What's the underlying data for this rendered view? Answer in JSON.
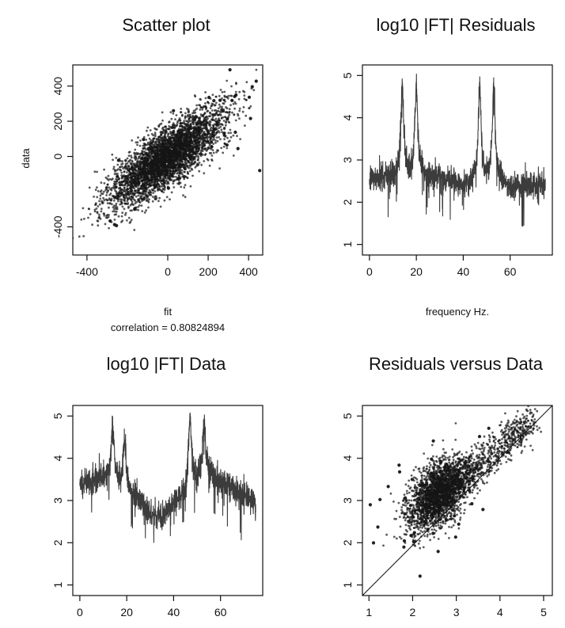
{
  "chart_data": [
    {
      "type": "scatter",
      "title": "Scatter plot",
      "xlabel": "fit",
      "ylabel": "data",
      "note_label": "correlation",
      "note_value": "0.80824894",
      "xlim": [
        -470,
        470
      ],
      "ylim": [
        -560,
        520
      ],
      "xticks": [
        -400,
        0,
        200,
        400
      ],
      "yticks": [
        -400,
        0,
        200,
        400
      ],
      "grid": false,
      "cloud": {
        "x_mean": 0,
        "x_sd": 140,
        "correlation": 0.80824894,
        "y_slope": 0.95,
        "n": 4000
      },
      "color": "#151515"
    },
    {
      "type": "line",
      "title": "log10 |FT| Residuals",
      "xlabel": "frequency Hz.",
      "ylabel": "",
      "xlim": [
        -3,
        78
      ],
      "ylim": [
        0.75,
        5.25
      ],
      "xticks": [
        0,
        20,
        40,
        60
      ],
      "yticks": [
        1,
        2,
        3,
        4,
        5
      ],
      "grid": false,
      "spectrum": {
        "x_range": [
          0,
          75
        ],
        "base": [
          [
            0,
            2.55
          ],
          [
            10,
            2.6
          ],
          [
            30,
            2.6
          ],
          [
            40,
            2.35
          ],
          [
            45,
            2.5
          ],
          [
            55,
            2.5
          ],
          [
            60,
            2.35
          ],
          [
            75,
            2.4
          ]
        ],
        "peaks": [
          {
            "x": 14,
            "y": 4.8
          },
          {
            "x": 20,
            "y": 4.7
          },
          {
            "x": 47,
            "y": 4.7
          },
          {
            "x": 53,
            "y": 4.7
          }
        ],
        "min_y": 1.15
      },
      "color": "#1a1a1a"
    },
    {
      "type": "line",
      "title": "log10 |FT| Data",
      "xlabel": "",
      "ylabel": "",
      "xlim": [
        -3,
        78
      ],
      "ylim": [
        0.75,
        5.25
      ],
      "xticks": [
        0,
        20,
        40,
        60
      ],
      "yticks": [
        1,
        2,
        3,
        4,
        5
      ],
      "grid": false,
      "spectrum": {
        "x_range": [
          0,
          75
        ],
        "base": [
          [
            0,
            3.4
          ],
          [
            5,
            3.45
          ],
          [
            10,
            3.55
          ],
          [
            25,
            3.05
          ],
          [
            30,
            2.65
          ],
          [
            35,
            2.6
          ],
          [
            42,
            3.0
          ],
          [
            50,
            3.45
          ],
          [
            55,
            3.6
          ],
          [
            65,
            3.3
          ],
          [
            75,
            2.95
          ]
        ],
        "peaks": [
          {
            "x": 14,
            "y": 4.85
          },
          {
            "x": 19,
            "y": 4.4
          },
          {
            "x": 47,
            "y": 4.95
          },
          {
            "x": 53,
            "y": 4.8
          }
        ],
        "min_y": 1.6
      },
      "color": "#1a1a1a"
    },
    {
      "type": "scatter",
      "title": "Residuals versus Data",
      "xlabel": "",
      "ylabel": "",
      "xlim": [
        0.85,
        5.2
      ],
      "ylim": [
        0.75,
        5.25
      ],
      "xticks": [
        1,
        2,
        3,
        4,
        5
      ],
      "yticks": [
        1,
        2,
        3,
        4,
        5
      ],
      "grid": false,
      "reference_line": {
        "from": [
          0.85,
          0.75
        ],
        "to": [
          5.2,
          5.25
        ]
      },
      "cloud": {
        "x_center": 2.6,
        "y_center": 3.15,
        "spread": 0.35,
        "n": 3000
      },
      "color": "#151515"
    }
  ]
}
